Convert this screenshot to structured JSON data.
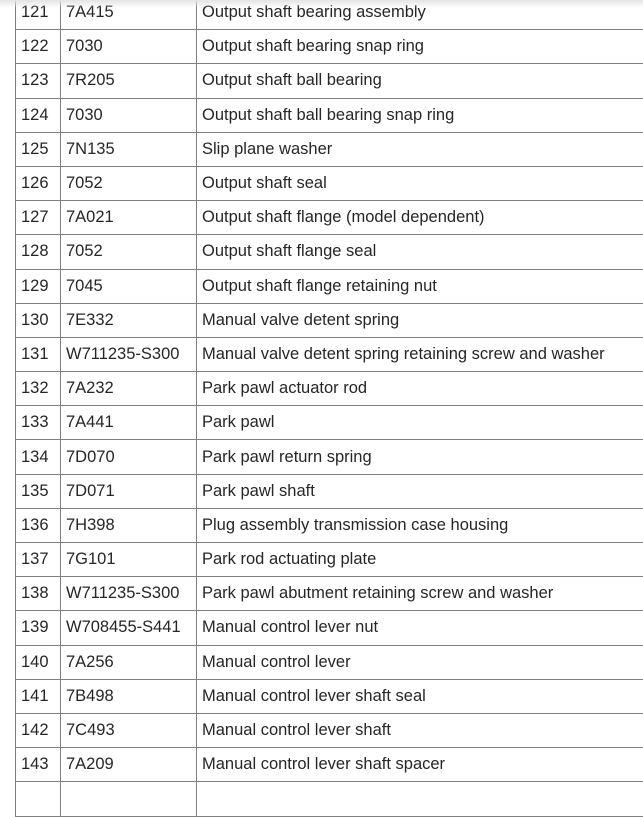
{
  "rows": [
    {
      "num": "121",
      "part": "7A415",
      "desc": "Output shaft bearing assembly"
    },
    {
      "num": "122",
      "part": "7030",
      "desc": "Output shaft bearing snap ring"
    },
    {
      "num": "123",
      "part": "7R205",
      "desc": "Output shaft ball bearing"
    },
    {
      "num": "124",
      "part": "7030",
      "desc": "Output shaft ball bearing snap ring"
    },
    {
      "num": "125",
      "part": "7N135",
      "desc": "Slip plane washer"
    },
    {
      "num": "126",
      "part": "7052",
      "desc": "Output shaft seal"
    },
    {
      "num": "127",
      "part": "7A021",
      "desc": "Output shaft flange (model dependent)"
    },
    {
      "num": "128",
      "part": "7052",
      "desc": "Output shaft flange seal"
    },
    {
      "num": "129",
      "part": "7045",
      "desc": "Output shaft flange retaining nut"
    },
    {
      "num": "130",
      "part": "7E332",
      "desc": "Manual valve detent spring"
    },
    {
      "num": "131",
      "part": "W711235-S300",
      "desc": "Manual valve detent spring retaining screw and washer"
    },
    {
      "num": "132",
      "part": "7A232",
      "desc": "Park pawl actuator rod"
    },
    {
      "num": "133",
      "part": "7A441",
      "desc": "Park pawl"
    },
    {
      "num": "134",
      "part": "7D070",
      "desc": "Park pawl return spring"
    },
    {
      "num": "135",
      "part": "7D071",
      "desc": "Park pawl shaft"
    },
    {
      "num": "136",
      "part": "7H398",
      "desc": "Plug assembly transmission case housing"
    },
    {
      "num": "137",
      "part": "7G101",
      "desc": "Park rod actuating plate"
    },
    {
      "num": "138",
      "part": "W711235-S300",
      "desc": "Park pawl abutment retaining screw and washer"
    },
    {
      "num": "139",
      "part": "W708455-S441",
      "desc": "Manual control lever nut"
    },
    {
      "num": "140",
      "part": "7A256",
      "desc": "Manual control lever"
    },
    {
      "num": "141",
      "part": "7B498",
      "desc": "Manual control lever shaft seal"
    },
    {
      "num": "142",
      "part": "7C493",
      "desc": "Manual control lever shaft"
    },
    {
      "num": "143",
      "part": "7A209",
      "desc": "Manual control lever shaft spacer"
    }
  ]
}
